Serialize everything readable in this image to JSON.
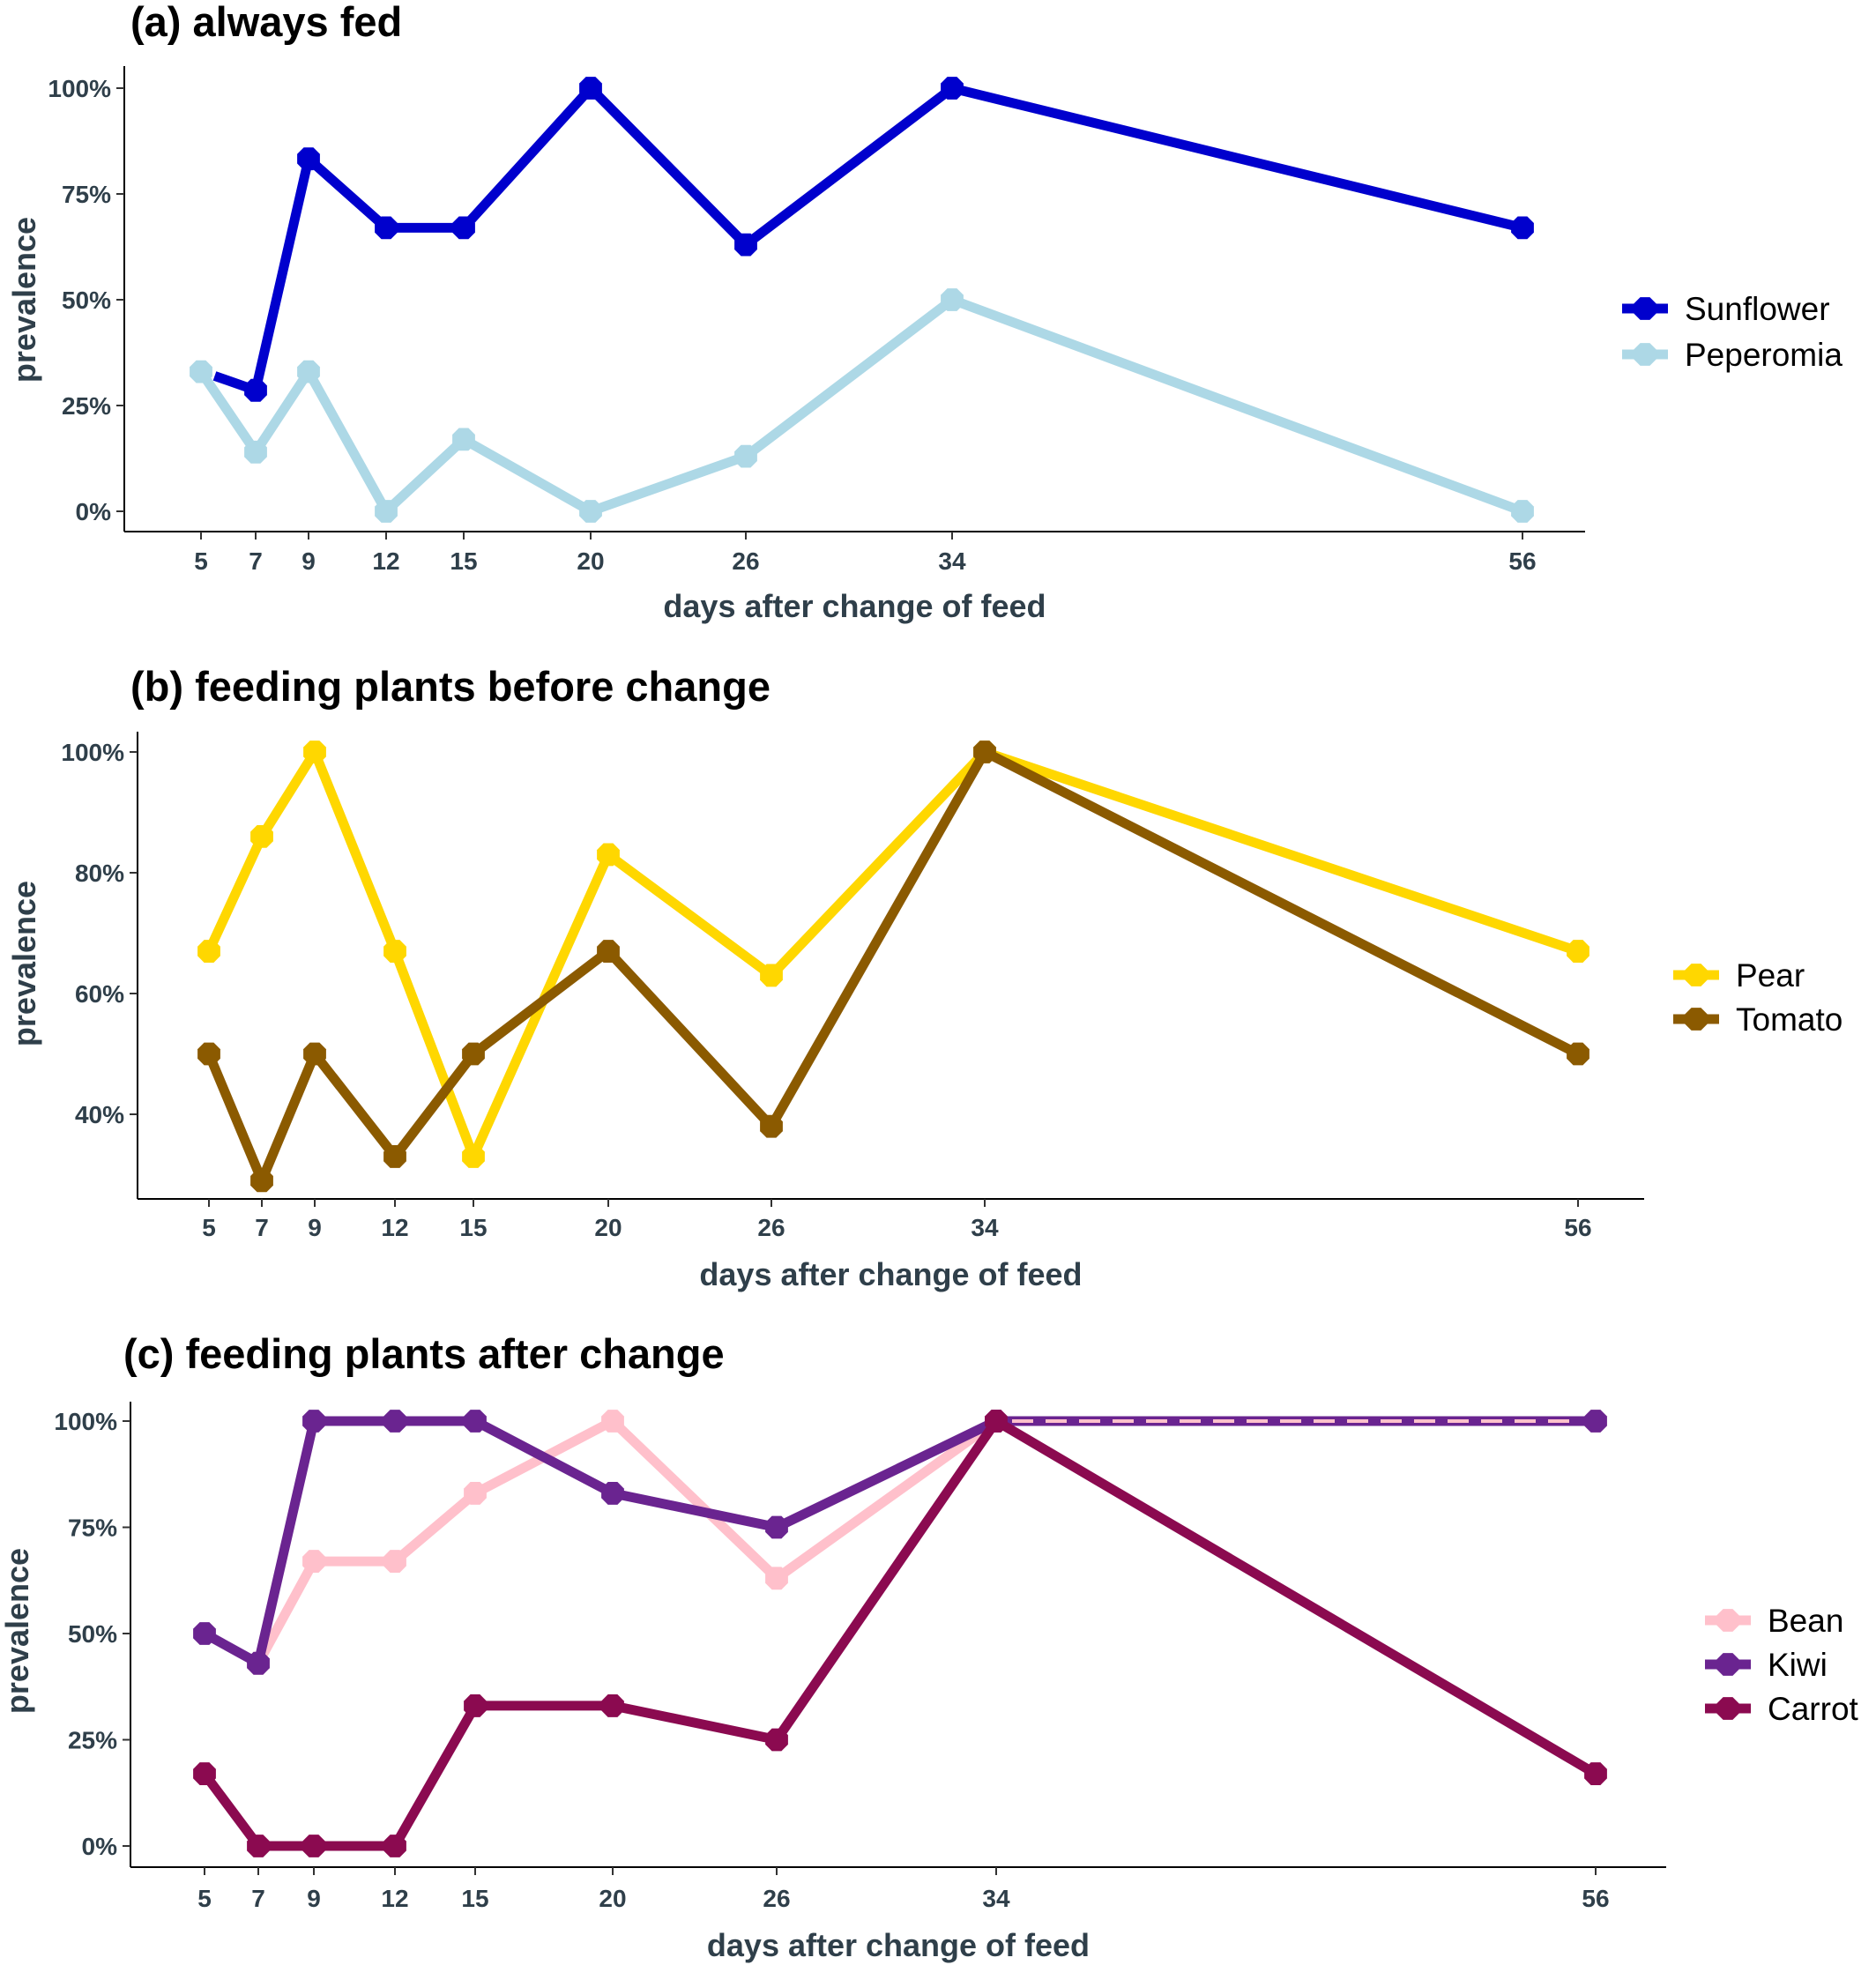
{
  "chart_data": [
    {
      "type": "line",
      "title": "(a) always fed",
      "xlabel": "days after change of feed",
      "ylabel": "prevalence",
      "x": [
        5,
        7,
        9,
        12,
        15,
        20,
        26,
        34,
        56
      ],
      "xticks": [
        "5",
        "7",
        "9",
        "12",
        "15",
        "20",
        "26",
        "34",
        "56"
      ],
      "yticks": [
        "0%",
        "25%",
        "50%",
        "75%",
        "100%"
      ],
      "ylim": [
        0,
        100
      ],
      "legend_position": "right",
      "grid": false,
      "series": [
        {
          "name": "Sunflower",
          "color": "#0000CD",
          "values": [
            null,
            28.6,
            83.3,
            67,
            67,
            100,
            63,
            100,
            67
          ],
          "line_start": {
            "x": 5.5,
            "y": 32
          }
        },
        {
          "name": "Peperomia",
          "color": "#ADD8E6",
          "values": [
            33,
            14,
            33,
            0,
            17,
            0,
            13,
            50,
            0
          ]
        }
      ]
    },
    {
      "type": "line",
      "title": "(b) feeding plants before change",
      "xlabel": "days after change of feed",
      "ylabel": "prevalence",
      "x": [
        5,
        7,
        9,
        12,
        15,
        20,
        26,
        34,
        56
      ],
      "xticks": [
        "5",
        "7",
        "9",
        "12",
        "15",
        "20",
        "26",
        "34",
        "56"
      ],
      "yticks": [
        "40%",
        "60%",
        "80%",
        "100%"
      ],
      "ylim": [
        26,
        100
      ],
      "legend_position": "right",
      "grid": false,
      "series": [
        {
          "name": "Pear",
          "color": "#FFD700",
          "values": [
            67,
            86,
            100,
            67,
            33,
            83,
            63,
            100,
            67
          ]
        },
        {
          "name": "Tomato",
          "color": "#8B5A00",
          "values": [
            50,
            29,
            50,
            33,
            50,
            67,
            38,
            100,
            50
          ]
        }
      ]
    },
    {
      "type": "line",
      "title": "(c) feeding plants after change",
      "xlabel": "days after change of feed",
      "ylabel": "prevalence",
      "x": [
        5,
        7,
        9,
        12,
        15,
        20,
        26,
        34,
        56
      ],
      "xticks": [
        "5",
        "7",
        "9",
        "12",
        "15",
        "20",
        "26",
        "34",
        "56"
      ],
      "yticks": [
        "0%",
        "25%",
        "50%",
        "75%",
        "100%"
      ],
      "ylim": [
        0,
        100
      ],
      "legend_position": "right",
      "grid": false,
      "series": [
        {
          "name": "Bean",
          "color": "#FFC0CB",
          "values": [
            null,
            43,
            67,
            67,
            83,
            100,
            63,
            100,
            100
          ]
        },
        {
          "name": "Kiwi",
          "color": "#6A2490",
          "values": [
            50,
            43,
            100,
            100,
            100,
            83,
            75,
            100,
            100
          ]
        },
        {
          "name": "Carrot",
          "color": "#8B0A50",
          "values": [
            17,
            0,
            0,
            0,
            33,
            33,
            25,
            100,
            17
          ]
        }
      ]
    }
  ]
}
